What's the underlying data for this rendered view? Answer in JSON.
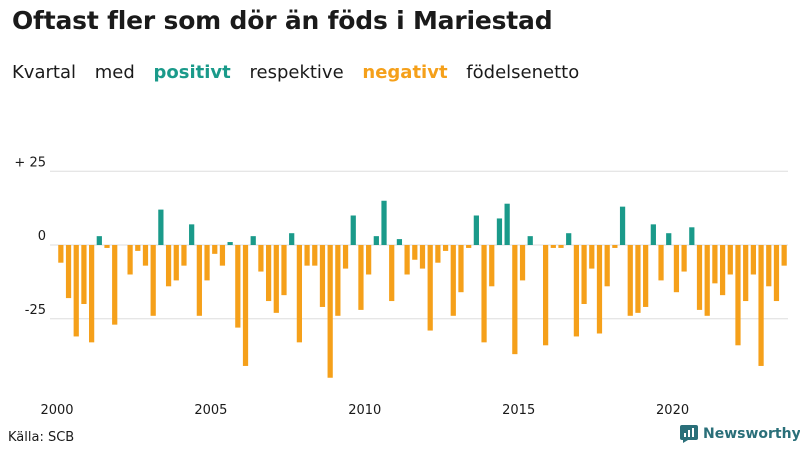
{
  "title": "Oftast fler som dör än föds i Mariestad",
  "subtitle": {
    "part1": "Kvartal",
    "part2": "med",
    "positive_word": "positivt",
    "part3": "respektive",
    "negative_word": "negativt",
    "part4": "födelsenetto"
  },
  "colors": {
    "positive": "#1a9a8a",
    "negative": "#f5a01a",
    "grid": "#dddddd",
    "text": "#1a1a1a"
  },
  "source": "Källa: SCB",
  "brand": {
    "name": "Newsworthy",
    "icon": "newsworthy-logo-icon"
  },
  "chart_data": {
    "type": "bar",
    "title": "Oftast fler som dör än föds i Mariestad",
    "xlabel": "",
    "ylabel": "",
    "ylim": [
      -50,
      27
    ],
    "yticks": [
      {
        "value": 25,
        "label": "+ 25"
      },
      {
        "value": 0,
        "label": "0"
      },
      {
        "value": -25,
        "label": "-25"
      }
    ],
    "xticks": [
      {
        "index": 0,
        "label": "2000"
      },
      {
        "index": 20,
        "label": "2005"
      },
      {
        "index": 40,
        "label": "2010"
      },
      {
        "index": 60,
        "label": "2015"
      },
      {
        "index": 80,
        "label": "2020"
      }
    ],
    "start": "2000 Q1",
    "values": [
      -6,
      -18,
      -31,
      -20,
      -33,
      3,
      -1,
      -27,
      0,
      -10,
      -2,
      -7,
      -24,
      12,
      -14,
      -12,
      -7,
      7,
      -24,
      -12,
      -3,
      -7,
      1,
      -28,
      -41,
      3,
      -9,
      -19,
      -23,
      -17,
      4,
      -33,
      -7,
      -7,
      -21,
      -45,
      -24,
      -8,
      10,
      -22,
      -10,
      3,
      15,
      -19,
      2,
      -10,
      -5,
      -8,
      -29,
      -6,
      -2,
      -24,
      -16,
      -1,
      10,
      -33,
      -14,
      9,
      14,
      -37,
      -12,
      3,
      0,
      -34,
      -1,
      -1,
      4,
      -31,
      -20,
      -8,
      -30,
      -14,
      -1,
      13,
      -24,
      -23,
      -21,
      7,
      -12,
      4,
      -16,
      -9,
      6,
      -22,
      -24,
      -13,
      -17,
      -10,
      -34,
      -19,
      -10,
      -41,
      -14,
      -19,
      -7
    ]
  }
}
